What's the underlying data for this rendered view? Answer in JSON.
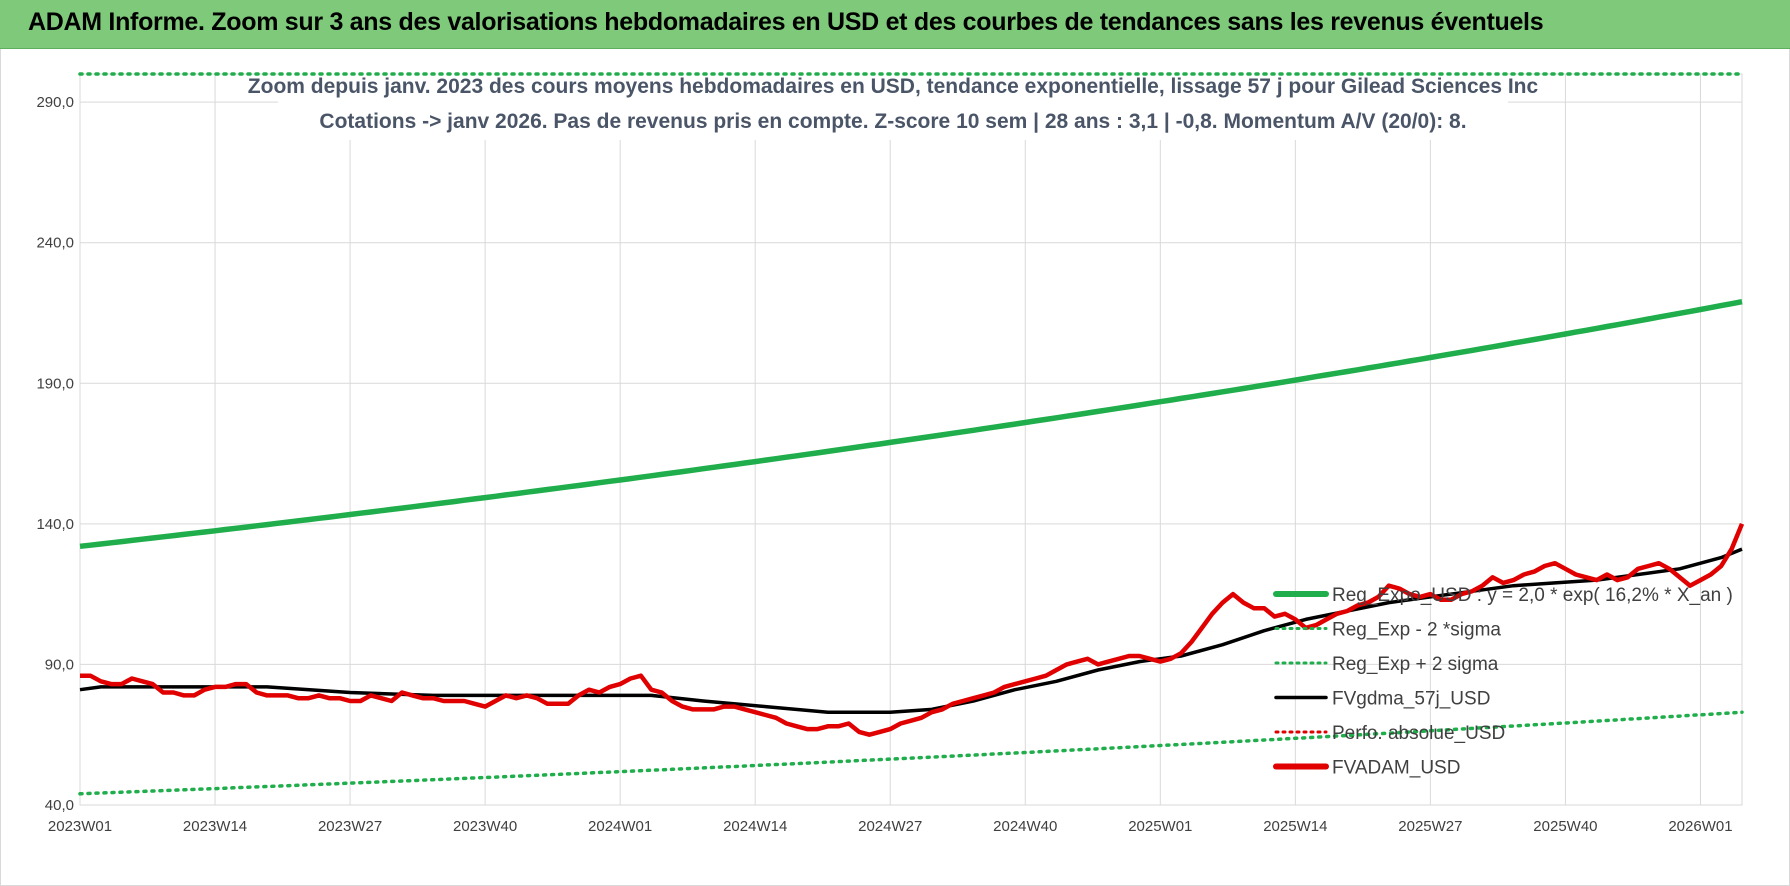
{
  "header": {
    "title": "ADAM Informe. Zoom sur 3 ans des valorisations hebdomadaires en USD et des courbes de tendances sans les revenus éventuels"
  },
  "colors": {
    "header_bg": "#7ec97a",
    "green": "#1fae4b",
    "black": "#000000",
    "red": "#e00000",
    "grid": "#d9d9d9"
  },
  "chart_data": {
    "type": "line",
    "title_line1": "Zoom depuis janv. 2023 des cours moyens hebdomadaires en USD, tendance exponentielle, lissage 57 j pour Gilead Sciences Inc",
    "title_line2": "Cotations -> janv 2026. Pas de revenus pris en compte. Z-score 10 sem | 28 ans : 3,1 | -0,8. Momentum A/V (20/0): 8.",
    "ylim": [
      40,
      300
    ],
    "yticks": [
      40,
      90,
      140,
      190,
      240,
      290
    ],
    "ytick_labels": [
      "40,0",
      "90,0",
      "140,0",
      "190,0",
      "240,0",
      "290,0"
    ],
    "x_count": 161,
    "xticks": [
      0,
      13,
      26,
      39,
      52,
      65,
      78,
      91,
      104,
      117,
      130,
      143,
      156
    ],
    "xtick_labels": [
      "2023W01",
      "2023W14",
      "2023W27",
      "2023W40",
      "2024W01",
      "2024W14",
      "2024W27",
      "2024W40",
      "2025W01",
      "2025W14",
      "2025W27",
      "2025W40",
      "2026W01"
    ],
    "legend": [
      {
        "label": "Reg_Expo_USD : y = 2,0 * exp( 16,2% * X_an )",
        "style": "solid-thick",
        "color": "#1fae4b"
      },
      {
        "label": "Reg_Exp - 2 *sigma",
        "style": "dotted",
        "color": "#1fae4b"
      },
      {
        "label": "Reg_Exp + 2 sigma",
        "style": "dotted",
        "color": "#1fae4b"
      },
      {
        "label": "FVgdma_57j_USD",
        "style": "solid",
        "color": "#000000"
      },
      {
        "label": "Perfo. absolue_USD",
        "style": "dotted",
        "color": "#e00000"
      },
      {
        "label": "FVADAM_USD",
        "style": "solid-thick",
        "color": "#e00000"
      }
    ],
    "series": [
      {
        "name": "Reg_Expo_USD",
        "model": "exp",
        "start": 132,
        "end": 219
      },
      {
        "name": "Reg_Exp - 2 *sigma",
        "model": "exp",
        "start": 44,
        "end": 73
      },
      {
        "name": "Reg_Exp + 2 sigma",
        "model": "exp",
        "start": 300,
        "end": 300
      },
      {
        "name": "FVgdma_57j_USD",
        "points": [
          [
            0,
            81
          ],
          [
            2,
            82
          ],
          [
            10,
            82
          ],
          [
            18,
            82
          ],
          [
            26,
            80
          ],
          [
            34,
            79
          ],
          [
            42,
            79
          ],
          [
            50,
            79
          ],
          [
            55,
            79
          ],
          [
            60,
            77
          ],
          [
            66,
            75
          ],
          [
            72,
            73
          ],
          [
            78,
            73
          ],
          [
            82,
            74
          ],
          [
            86,
            77
          ],
          [
            90,
            81
          ],
          [
            94,
            84
          ],
          [
            98,
            88
          ],
          [
            102,
            91
          ],
          [
            106,
            93
          ],
          [
            110,
            97
          ],
          [
            114,
            102
          ],
          [
            118,
            106
          ],
          [
            122,
            109
          ],
          [
            126,
            112
          ],
          [
            130,
            114
          ],
          [
            134,
            116
          ],
          [
            138,
            118
          ],
          [
            142,
            119
          ],
          [
            146,
            120
          ],
          [
            150,
            122
          ],
          [
            154,
            124
          ],
          [
            158,
            128
          ],
          [
            160,
            131
          ]
        ]
      },
      {
        "name": "FVADAM_USD",
        "points": [
          [
            0,
            86
          ],
          [
            1,
            86
          ],
          [
            2,
            84
          ],
          [
            3,
            83
          ],
          [
            4,
            83
          ],
          [
            5,
            85
          ],
          [
            6,
            84
          ],
          [
            7,
            83
          ],
          [
            8,
            80
          ],
          [
            9,
            80
          ],
          [
            10,
            79
          ],
          [
            11,
            79
          ],
          [
            12,
            81
          ],
          [
            13,
            82
          ],
          [
            14,
            82
          ],
          [
            15,
            83
          ],
          [
            16,
            83
          ],
          [
            17,
            80
          ],
          [
            18,
            79
          ],
          [
            19,
            79
          ],
          [
            20,
            79
          ],
          [
            21,
            78
          ],
          [
            22,
            78
          ],
          [
            23,
            79
          ],
          [
            24,
            78
          ],
          [
            25,
            78
          ],
          [
            26,
            77
          ],
          [
            27,
            77
          ],
          [
            28,
            79
          ],
          [
            29,
            78
          ],
          [
            30,
            77
          ],
          [
            31,
            80
          ],
          [
            32,
            79
          ],
          [
            33,
            78
          ],
          [
            34,
            78
          ],
          [
            35,
            77
          ],
          [
            36,
            77
          ],
          [
            37,
            77
          ],
          [
            38,
            76
          ],
          [
            39,
            75
          ],
          [
            40,
            77
          ],
          [
            41,
            79
          ],
          [
            42,
            78
          ],
          [
            43,
            79
          ],
          [
            44,
            78
          ],
          [
            45,
            76
          ],
          [
            46,
            76
          ],
          [
            47,
            76
          ],
          [
            48,
            79
          ],
          [
            49,
            81
          ],
          [
            50,
            80
          ],
          [
            51,
            82
          ],
          [
            52,
            83
          ],
          [
            53,
            85
          ],
          [
            54,
            86
          ],
          [
            55,
            81
          ],
          [
            56,
            80
          ],
          [
            57,
            77
          ],
          [
            58,
            75
          ],
          [
            59,
            74
          ],
          [
            60,
            74
          ],
          [
            61,
            74
          ],
          [
            62,
            75
          ],
          [
            63,
            75
          ],
          [
            64,
            74
          ],
          [
            65,
            73
          ],
          [
            66,
            72
          ],
          [
            67,
            71
          ],
          [
            68,
            69
          ],
          [
            69,
            68
          ],
          [
            70,
            67
          ],
          [
            71,
            67
          ],
          [
            72,
            68
          ],
          [
            73,
            68
          ],
          [
            74,
            69
          ],
          [
            75,
            66
          ],
          [
            76,
            65
          ],
          [
            77,
            66
          ],
          [
            78,
            67
          ],
          [
            79,
            69
          ],
          [
            80,
            70
          ],
          [
            81,
            71
          ],
          [
            82,
            73
          ],
          [
            83,
            74
          ],
          [
            84,
            76
          ],
          [
            85,
            77
          ],
          [
            86,
            78
          ],
          [
            87,
            79
          ],
          [
            88,
            80
          ],
          [
            89,
            82
          ],
          [
            90,
            83
          ],
          [
            91,
            84
          ],
          [
            92,
            85
          ],
          [
            93,
            86
          ],
          [
            94,
            88
          ],
          [
            95,
            90
          ],
          [
            96,
            91
          ],
          [
            97,
            92
          ],
          [
            98,
            90
          ],
          [
            99,
            91
          ],
          [
            100,
            92
          ],
          [
            101,
            93
          ],
          [
            102,
            93
          ],
          [
            103,
            92
          ],
          [
            104,
            91
          ],
          [
            105,
            92
          ],
          [
            106,
            94
          ],
          [
            107,
            98
          ],
          [
            108,
            103
          ],
          [
            109,
            108
          ],
          [
            110,
            112
          ],
          [
            111,
            115
          ],
          [
            112,
            112
          ],
          [
            113,
            110
          ],
          [
            114,
            110
          ],
          [
            115,
            107
          ],
          [
            116,
            108
          ],
          [
            117,
            106
          ],
          [
            118,
            103
          ],
          [
            119,
            104
          ],
          [
            120,
            106
          ],
          [
            121,
            108
          ],
          [
            122,
            109
          ],
          [
            123,
            111
          ],
          [
            124,
            112
          ],
          [
            125,
            114
          ],
          [
            126,
            118
          ],
          [
            127,
            117
          ],
          [
            128,
            115
          ],
          [
            129,
            114
          ],
          [
            130,
            115
          ],
          [
            131,
            113
          ],
          [
            132,
            113
          ],
          [
            133,
            115
          ],
          [
            134,
            116
          ],
          [
            135,
            118
          ],
          [
            136,
            121
          ],
          [
            137,
            119
          ],
          [
            138,
            120
          ],
          [
            139,
            122
          ],
          [
            140,
            123
          ],
          [
            141,
            125
          ],
          [
            142,
            126
          ],
          [
            143,
            124
          ],
          [
            144,
            122
          ],
          [
            145,
            121
          ],
          [
            146,
            120
          ],
          [
            147,
            122
          ],
          [
            148,
            120
          ],
          [
            149,
            121
          ],
          [
            150,
            124
          ],
          [
            151,
            125
          ],
          [
            152,
            126
          ],
          [
            153,
            124
          ],
          [
            154,
            121
          ],
          [
            155,
            118
          ],
          [
            156,
            120
          ],
          [
            157,
            122
          ],
          [
            158,
            125
          ],
          [
            159,
            131
          ],
          [
            160,
            140
          ]
        ]
      }
    ]
  }
}
